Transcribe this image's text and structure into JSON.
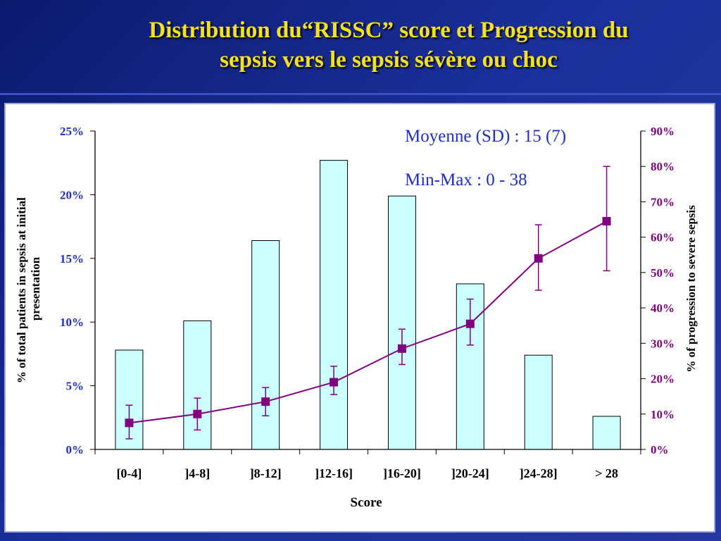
{
  "slide": {
    "title_line1": "Distribution du“RISSC” score et Progression du",
    "title_line2": "sepsis vers le sepsis sévère ou choc"
  },
  "colors": {
    "bar_fill": "#ccffff",
    "line": "#800080",
    "left_axis_text": "#1f2fbf",
    "right_axis_text": "#800080",
    "title": "#f5e21a"
  },
  "chart_data": {
    "type": "bar",
    "categories": [
      "[0-4]",
      "]4-8]",
      "]8-12]",
      "]12-16]",
      "]16-20]",
      "]20-24]",
      "]24-28]",
      "> 28"
    ],
    "series": [
      {
        "axis": "left",
        "kind": "bar",
        "values": [
          7.8,
          10.1,
          16.4,
          22.7,
          19.9,
          13.0,
          7.4,
          2.6
        ]
      },
      {
        "axis": "right",
        "kind": "line",
        "values": [
          7.5,
          10,
          13.5,
          19,
          28.5,
          35.5,
          54,
          64.5
        ],
        "error_high": [
          12.5,
          14.5,
          17.5,
          23.5,
          34,
          42.5,
          63.5,
          80
        ],
        "error_low": [
          3,
          5.5,
          9.5,
          15.5,
          24,
          29.5,
          45,
          50.5
        ]
      }
    ],
    "xlabel": "Score",
    "ylabel": "% of total patients in sepsis at initial presentation",
    "ylabel_right": "% of progression to severe sepsis",
    "ylim": [
      0,
      25
    ],
    "ylim_right": [
      0,
      90
    ],
    "yticks": [
      "0%",
      "5%",
      "10%",
      "15%",
      "20%",
      "25%"
    ],
    "yticks_right": [
      "0%",
      "10%",
      "20%",
      "30%",
      "40%",
      "50%",
      "60%",
      "70%",
      "80%",
      "90%"
    ],
    "annotations": [
      "Moyenne (SD) : 15 (7)",
      "Min-Max : 0 - 38"
    ]
  }
}
